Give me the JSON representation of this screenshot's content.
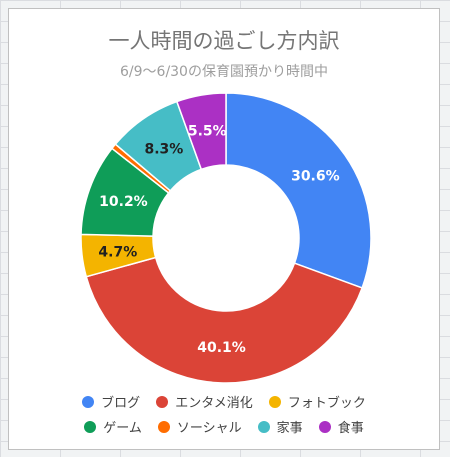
{
  "chart_data": {
    "type": "pie",
    "title": "一人時間の過ごし方内訳",
    "subtitle": "6/9〜6/30の保育園預かり時間中",
    "donut": true,
    "start_angle_deg": 0,
    "direction": "clockwise",
    "slices": [
      {
        "name": "ブログ",
        "value": 30.6,
        "label": "30.6%",
        "color": "#4285f4",
        "label_color": "#ffffff"
      },
      {
        "name": "エンタメ消化",
        "value": 40.1,
        "label": "40.1%",
        "color": "#db4437",
        "label_color": "#ffffff"
      },
      {
        "name": "フォトブック",
        "value": 4.7,
        "label": "4.7%",
        "color": "#f4b400",
        "label_color": "#212121"
      },
      {
        "name": "ゲーム",
        "value": 10.2,
        "label": "10.2%",
        "color": "#0f9d58",
        "label_color": "#ffffff"
      },
      {
        "name": "ソーシャル",
        "value": 0.6,
        "label": "",
        "color": "#ff6d01",
        "label_color": "#ffffff"
      },
      {
        "name": "家事",
        "value": 8.3,
        "label": "8.3%",
        "color": "#46bdc6",
        "label_color": "#212121"
      },
      {
        "name": "食事",
        "value": 5.5,
        "label": "5.5%",
        "color": "#ab30c4",
        "label_color": "#ffffff"
      }
    ],
    "legend": {
      "placement": "bottom",
      "rows": [
        [
          0,
          1,
          2
        ],
        [
          3,
          4,
          5,
          6
        ]
      ]
    }
  }
}
